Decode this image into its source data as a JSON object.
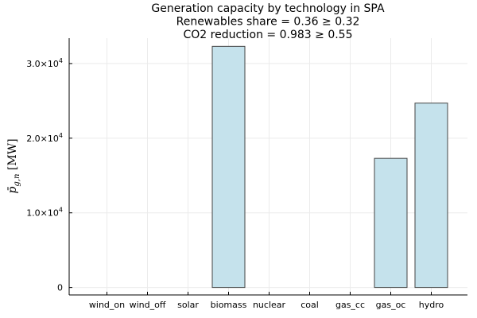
{
  "chart_data": {
    "type": "bar",
    "title_lines": [
      "Generation capacity by technology in SPA",
      "Renewables share = 0.36 ≥ 0.32",
      "CO2 reduction = 0.983 ≥ 0.55"
    ],
    "categories": [
      "wind_on",
      "wind_off",
      "solar",
      "biomass",
      "nuclear",
      "coal",
      "gas_cc",
      "gas_oc",
      "hydro"
    ],
    "values": [
      0,
      0,
      0,
      32300,
      0,
      0,
      0,
      17300,
      24700
    ],
    "ylabel": "p̄_{g,n} [MW]",
    "ylim": [
      -1000,
      33400
    ],
    "yticks": [
      {
        "value": 0,
        "mantissa": "0",
        "exp": ""
      },
      {
        "value": 10000,
        "mantissa": "1.0×10",
        "exp": "4"
      },
      {
        "value": 20000,
        "mantissa": "2.0×10",
        "exp": "4"
      },
      {
        "value": 30000,
        "mantissa": "3.0×10",
        "exp": "4"
      }
    ],
    "grid": true,
    "legend": "none",
    "colors": {
      "bar_fill": "#c5e2ec",
      "bar_stroke": "#444444",
      "grid": "#ebebeb",
      "axis": "#000000"
    }
  }
}
